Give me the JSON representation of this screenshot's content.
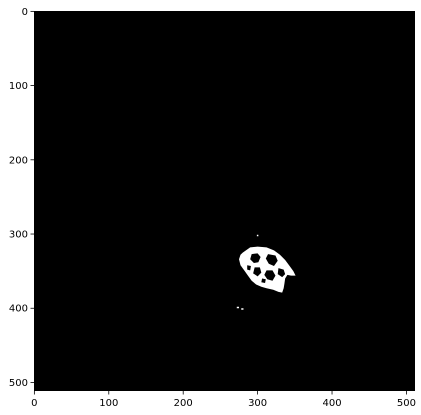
{
  "chart_data": {
    "type": "heatmap",
    "title": "",
    "xlabel": "",
    "ylabel": "",
    "xlim": [
      0,
      512
    ],
    "ylim": [
      512,
      0
    ],
    "y_axis_inverted": true,
    "grid": false,
    "legend": "none",
    "x_ticks": [
      0,
      100,
      200,
      300,
      400,
      500
    ],
    "y_ticks": [
      0,
      100,
      200,
      300,
      400,
      500
    ],
    "x_tick_labels": [
      "0",
      "100",
      "200",
      "300",
      "400",
      "500"
    ],
    "y_tick_labels": [
      "0",
      "100",
      "200",
      "300",
      "400",
      "500"
    ],
    "image": {
      "width": 512,
      "height": 512,
      "background_color": "#000000",
      "foreground_color": "#ffffff",
      "description_values": "binary mask, white region present",
      "blob_outer": [
        [
          280,
          325
        ],
        [
          290,
          318
        ],
        [
          300,
          317
        ],
        [
          312,
          318
        ],
        [
          322,
          322
        ],
        [
          330,
          328
        ],
        [
          337,
          335
        ],
        [
          343,
          343
        ],
        [
          348,
          350
        ],
        [
          351,
          356
        ],
        [
          345,
          356
        ],
        [
          340,
          355
        ],
        [
          337,
          360
        ],
        [
          336,
          367
        ],
        [
          335,
          373
        ],
        [
          333,
          379
        ],
        [
          328,
          378
        ],
        [
          321,
          375
        ],
        [
          312,
          373
        ],
        [
          305,
          371
        ],
        [
          298,
          368
        ],
        [
          292,
          363
        ],
        [
          287,
          356
        ],
        [
          282,
          349
        ],
        [
          277,
          342
        ],
        [
          275,
          334
        ],
        [
          277,
          328
        ]
      ],
      "blob_holes": [
        [
          [
            292,
            327
          ],
          [
            300,
            326
          ],
          [
            304,
            331
          ],
          [
            301,
            338
          ],
          [
            295,
            339
          ],
          [
            290,
            334
          ]
        ],
        [
          [
            314,
            327
          ],
          [
            324,
            329
          ],
          [
            327,
            336
          ],
          [
            322,
            343
          ],
          [
            315,
            340
          ],
          [
            311,
            333
          ]
        ],
        [
          [
            296,
            345
          ],
          [
            303,
            345
          ],
          [
            305,
            352
          ],
          [
            300,
            357
          ],
          [
            294,
            353
          ]
        ],
        [
          [
            312,
            349
          ],
          [
            320,
            349
          ],
          [
            324,
            356
          ],
          [
            320,
            363
          ],
          [
            313,
            361
          ],
          [
            309,
            355
          ]
        ],
        [
          [
            328,
            346
          ],
          [
            335,
            348
          ],
          [
            337,
            354
          ],
          [
            333,
            358
          ],
          [
            327,
            354
          ]
        ],
        [
          [
            286,
            342
          ],
          [
            291,
            343
          ],
          [
            290,
            349
          ],
          [
            286,
            348
          ]
        ],
        [
          [
            306,
            360
          ],
          [
            311,
            361
          ],
          [
            310,
            366
          ],
          [
            305,
            365
          ]
        ]
      ],
      "specks": [
        [
          299,
          301,
          2,
          2
        ],
        [
          272,
          398,
          3,
          2
        ],
        [
          278,
          400,
          3,
          2
        ]
      ]
    }
  }
}
